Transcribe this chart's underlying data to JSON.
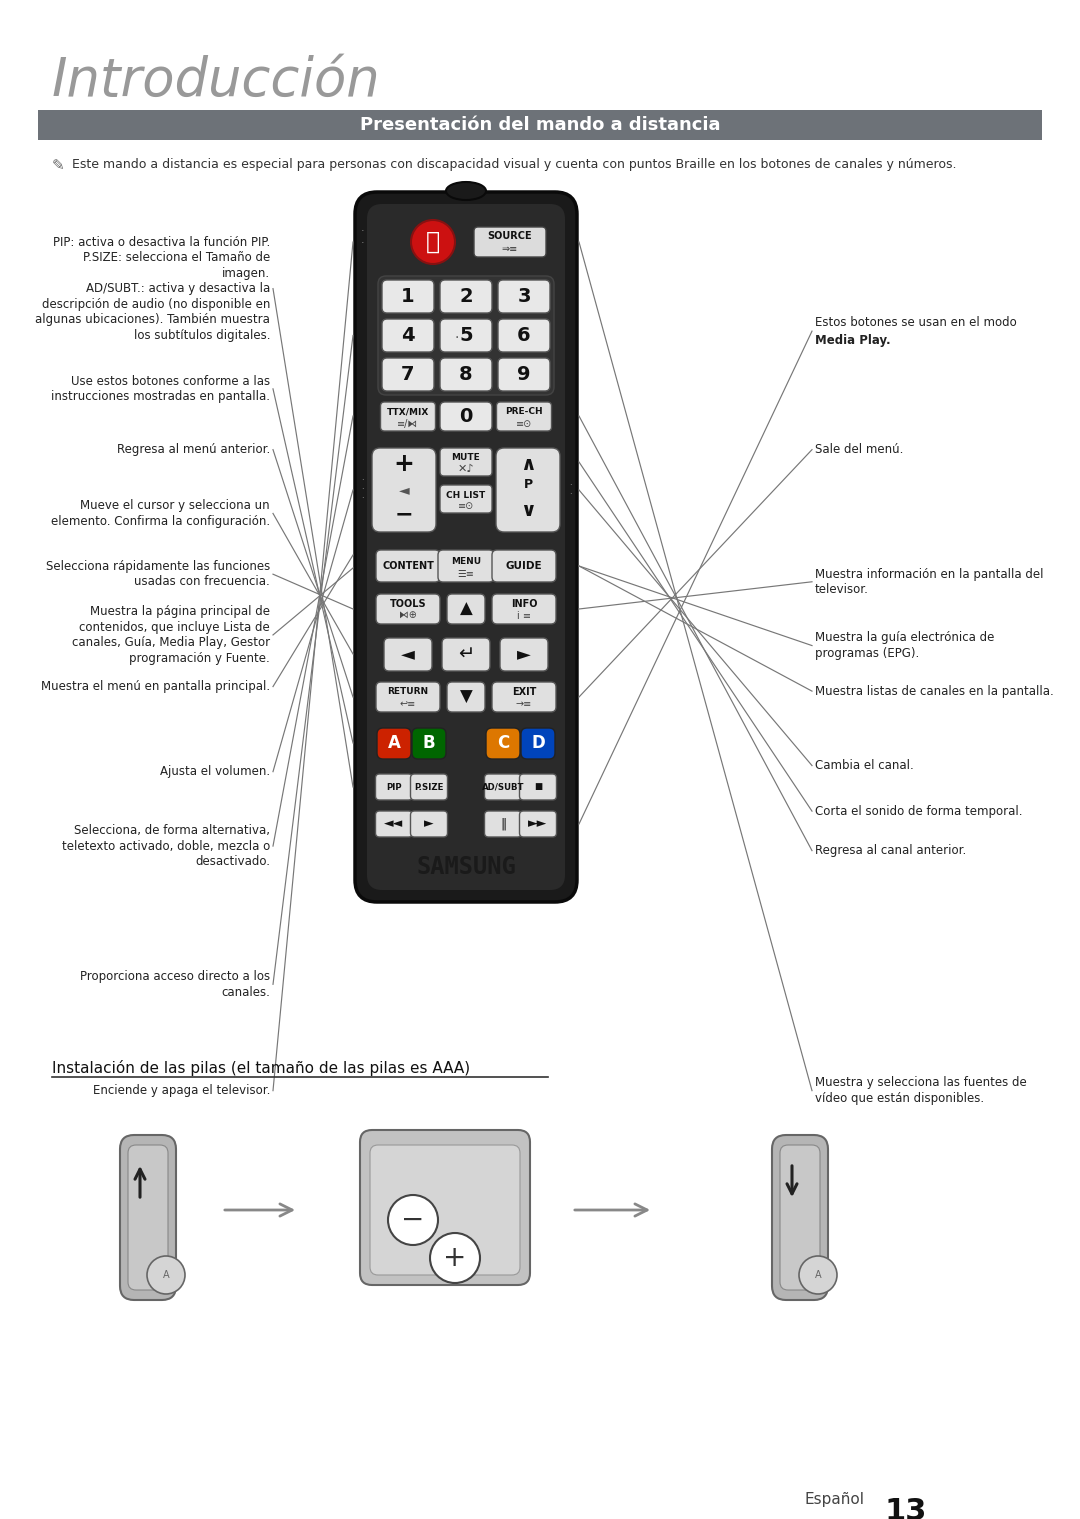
{
  "title": "Introducción",
  "section_title": "Presentación del mando a distancia",
  "note_text": "Este mando a distancia es especial para personas con discapacidad visual y cuenta con puntos Braille en los botones de canales y números.",
  "battery_title": "Instalación de las pilas (el tamaño de las pilas es AAA)",
  "footer_lang": "Español",
  "footer_num": "13",
  "bg_color": "#ffffff",
  "header_bg": "#6d7278",
  "header_text_color": "#ffffff",
  "left_labels": [
    {
      "text": "Enciende y apaga el televisor.",
      "ya": 0.718
    },
    {
      "text": "Proporciona acceso directo a los\ncanales.",
      "ya": 0.648
    },
    {
      "text": "Selecciona, de forma alternativa,\nteletexto activado, doble, mezcla o\ndesactivado.",
      "ya": 0.557
    },
    {
      "text": "Ajusta el volumen.",
      "ya": 0.508
    },
    {
      "text": "Muestra el menú en pantalla principal.",
      "ya": 0.452
    },
    {
      "text": "Muestra la página principal de\ncontenidos, que incluye Lista de\ncanales, Guía, Media Play, Gestor\nprogramación y Fuente.",
      "ya": 0.418
    },
    {
      "text": "Selecciona rápidamente las funciones\nusadas con frecuencia.",
      "ya": 0.378
    },
    {
      "text": "Mueve el cursor y selecciona un\nelemento. Confirma la configuración.",
      "ya": 0.338
    },
    {
      "text": "Regresa al menú anterior.",
      "ya": 0.296
    },
    {
      "text": "Use estos botones conforme a las\ninstrucciones mostradas en pantalla.",
      "ya": 0.256
    },
    {
      "text": "PIP: activa o desactiva la función PIP.\nP.SIZE: selecciona el Tamaño de\nimagen.\nAD/SUBT.: activa y desactiva la\ndescripción de audio (no disponible en\nalgunas ubicaciones). También muestra\nlos subtítulos digitales.",
      "ya": 0.19
    }
  ],
  "right_labels": [
    {
      "text": "Muestra y selecciona las fuentes de\nvídeo que están disponibles.",
      "ya": 0.718
    },
    {
      "text": "Regresa al canal anterior.",
      "ya": 0.56
    },
    {
      "text": "Corta el sonido de forma temporal.",
      "ya": 0.534
    },
    {
      "text": "Cambia el canal.",
      "ya": 0.504
    },
    {
      "text": "Muestra listas de canales en la pantalla.",
      "ya": 0.455
    },
    {
      "text": "Muestra la guía electrónica de\nprogramas (EPG).",
      "ya": 0.425
    },
    {
      "text": "Muestra información en la pantalla del\ntelevisor.",
      "ya": 0.383
    },
    {
      "text": "Sale del menú.",
      "ya": 0.296
    },
    {
      "text": "Estos botones se usan en el modo\nMedia Play.",
      "ya": 0.218
    }
  ]
}
